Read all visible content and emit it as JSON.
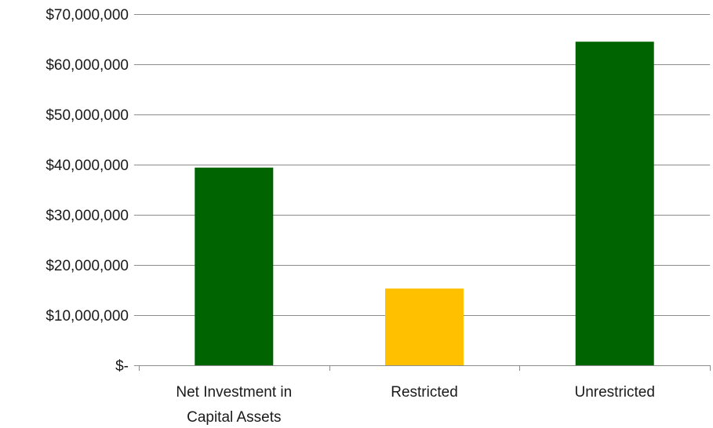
{
  "chart_data": {
    "type": "bar",
    "title": "",
    "xlabel": "",
    "ylabel": "",
    "categories": [
      [
        "Net Investment in",
        "Capital Assets"
      ],
      [
        "Restricted"
      ],
      [
        "Unrestricted"
      ]
    ],
    "values": [
      39400000,
      15300000,
      64500000
    ],
    "bar_colors": [
      "#006400",
      "#FFC000",
      "#006400"
    ],
    "ylim": [
      0,
      70000000
    ],
    "yticks": [
      0,
      10000000,
      20000000,
      30000000,
      40000000,
      50000000,
      60000000,
      70000000
    ],
    "ytick_labels": [
      "$-",
      "$10,000,000",
      "$20,000,000",
      "$30,000,000",
      "$40,000,000",
      "$50,000,000",
      "$60,000,000",
      "$70,000,000"
    ],
    "grid": true,
    "legend": "none"
  }
}
